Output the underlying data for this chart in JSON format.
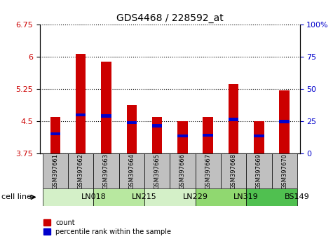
{
  "title": "GDS4468 / 228592_at",
  "samples": [
    "GSM397661",
    "GSM397662",
    "GSM397663",
    "GSM397664",
    "GSM397665",
    "GSM397666",
    "GSM397667",
    "GSM397668",
    "GSM397669",
    "GSM397670"
  ],
  "count_values": [
    4.6,
    6.08,
    5.9,
    4.88,
    4.6,
    4.5,
    4.6,
    5.37,
    4.5,
    5.22
  ],
  "percentile_values": [
    4.21,
    4.65,
    4.63,
    4.47,
    4.4,
    4.17,
    4.18,
    4.55,
    4.17,
    4.5
  ],
  "cell_lines": [
    {
      "label": "LN018",
      "start": 0,
      "end": 2,
      "color": "#d4f0c8"
    },
    {
      "label": "LN215",
      "start": 2,
      "end": 4,
      "color": "#b8e8a0"
    },
    {
      "label": "LN229",
      "start": 4,
      "end": 6,
      "color": "#d4f0c8"
    },
    {
      "label": "LN319",
      "start": 6,
      "end": 8,
      "color": "#90d870"
    },
    {
      "label": "BS149",
      "start": 8,
      "end": 10,
      "color": "#50c050"
    }
  ],
  "ymin": 3.75,
  "ymax": 6.75,
  "yticks": [
    3.75,
    4.5,
    5.25,
    6.0,
    6.75
  ],
  "ytick_labels": [
    "3.75",
    "4.5",
    "5.25",
    "6",
    "6.75"
  ],
  "y2ticks": [
    3.75,
    4.5,
    5.25,
    6.0,
    6.75
  ],
  "y2tick_labels": [
    "0",
    "25",
    "50",
    "75",
    "100%"
  ],
  "bar_color": "#cc0000",
  "percentile_color": "#0000cc",
  "bar_width": 0.4,
  "sample_bg_color": "#c0c0c0",
  "ylabel_color": "#cc0000",
  "y2label_color": "#0000cc",
  "legend_count_color": "#cc0000",
  "legend_pct_color": "#0000cc",
  "cell_line_label": "cell line",
  "legend_count_text": "count",
  "legend_pct_text": "percentile rank within the sample"
}
